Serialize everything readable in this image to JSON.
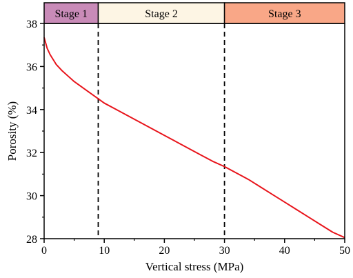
{
  "chart_data": {
    "type": "line",
    "xlabel": "Vertical stress (MPa)",
    "ylabel": "Porosity  (%)",
    "xlim": [
      0,
      50
    ],
    "ylim": [
      28,
      38
    ],
    "xticks": [
      0,
      10,
      20,
      30,
      40,
      50
    ],
    "yticks": [
      28,
      30,
      32,
      34,
      36,
      38
    ],
    "grid": false,
    "series": [
      {
        "color": "#e8141b",
        "x": [
          0,
          0.5,
          1,
          2,
          3,
          4,
          5,
          6,
          7,
          8,
          9,
          10,
          12,
          14,
          16,
          18,
          20,
          22,
          24,
          26,
          28,
          30,
          32,
          34,
          36,
          38,
          40,
          42,
          44,
          46,
          48,
          50
        ],
        "y": [
          37.35,
          36.85,
          36.55,
          36.1,
          35.8,
          35.55,
          35.3,
          35.1,
          34.9,
          34.7,
          34.5,
          34.3,
          34.0,
          33.7,
          33.4,
          33.1,
          32.8,
          32.5,
          32.2,
          31.9,
          31.6,
          31.35,
          31.05,
          30.75,
          30.4,
          30.05,
          29.7,
          29.35,
          29.0,
          28.65,
          28.3,
          28.05
        ]
      }
    ],
    "stage_boundaries": [
      9,
      30
    ],
    "stages": [
      {
        "label": "Stage 1",
        "from": 0,
        "to": 9,
        "color": "#c98bb8"
      },
      {
        "label": "Stage 2",
        "from": 9,
        "to": 30,
        "color": "#fdf5e4"
      },
      {
        "label": "Stage 3",
        "from": 30,
        "to": 50,
        "color": "#f9a787"
      }
    ]
  }
}
